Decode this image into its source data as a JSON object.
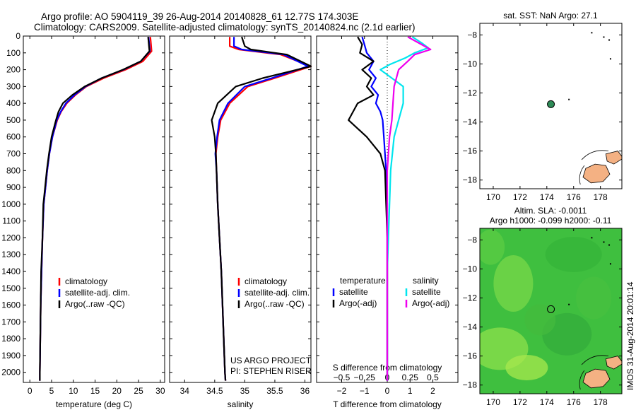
{
  "header": {
    "line1": "Argo profile: AO 5904119_39 26-Aug-2014 20140828_61 12.77S 174.303E",
    "line2": "Climatology: CARS2009. Satellite-adjusted climatology: synTS_20140824.nc (2.1d earlier)"
  },
  "credit": "IMOS 31-Aug-2014 20:01:14",
  "colors": {
    "clim": "#ff0000",
    "sat": "#0000ff",
    "argo": "#000000",
    "sat_sal": "#00e5ee",
    "argo_sal": "#ee00ee",
    "map_bg": "#3fbf3f",
    "land": "#f4b183",
    "float": "#2e8b57"
  },
  "chart_data": [
    {
      "id": "temperature",
      "type": "line",
      "xlabel": "temperature (deg C)",
      "ylabel": "",
      "xlim": [
        -1.5,
        31
      ],
      "ylim": [
        2060,
        0
      ],
      "xticks": [
        0,
        5,
        10,
        15,
        20,
        25,
        30
      ],
      "yticks": [
        0,
        100,
        200,
        300,
        400,
        500,
        600,
        700,
        800,
        900,
        1000,
        1100,
        1200,
        1300,
        1400,
        1500,
        1600,
        1700,
        1800,
        1900,
        2000
      ],
      "legend": [
        "climatology",
        "satellite-adj. clim.",
        "Argo(..raw -QC)"
      ],
      "series": [
        {
          "name": "climatology",
          "color": "clim",
          "x": [
            27.7,
            27.8,
            27.9,
            28.0,
            26.0,
            22.0,
            17.0,
            13.0,
            10.5,
            8.5,
            7.2,
            6.3,
            5.2,
            4.5,
            4.0,
            3.6,
            3.2,
            2.9,
            2.7,
            2.5,
            2.4,
            2.3,
            2.3
          ],
          "y": [
            5,
            30,
            60,
            90,
            150,
            200,
            250,
            300,
            350,
            400,
            450,
            500,
            600,
            700,
            800,
            900,
            1000,
            1200,
            1400,
            1600,
            1800,
            2000,
            2050
          ]
        },
        {
          "name": "satellite-adj. clim.",
          "color": "sat",
          "x": [
            27.3,
            27.4,
            27.5,
            27.6,
            25.5,
            21.5,
            16.5,
            12.8,
            10.3,
            8.3,
            7.1,
            6.2,
            5.2,
            4.5,
            4.0,
            3.6,
            3.2,
            2.9,
            2.7,
            2.5,
            2.4,
            2.3,
            2.3
          ],
          "y": [
            5,
            30,
            60,
            90,
            150,
            200,
            250,
            300,
            350,
            400,
            450,
            500,
            600,
            700,
            800,
            900,
            1000,
            1200,
            1400,
            1600,
            1800,
            2000,
            2050
          ]
        },
        {
          "name": "Argo(..raw -QC)",
          "color": "argo",
          "x": [
            27.2,
            27.3,
            27.4,
            27.5,
            25.5,
            21.4,
            16.5,
            12.6,
            9.8,
            7.6,
            6.6,
            6.0,
            5.0,
            4.4,
            3.9,
            3.5,
            3.1,
            2.9,
            2.6,
            2.5,
            2.4,
            2.3,
            2.3
          ],
          "y": [
            5,
            30,
            60,
            90,
            150,
            200,
            250,
            300,
            350,
            400,
            450,
            500,
            600,
            700,
            800,
            900,
            1000,
            1200,
            1400,
            1600,
            1800,
            2000,
            2050
          ]
        }
      ]
    },
    {
      "id": "salinity",
      "type": "line",
      "xlabel": "salinity",
      "ylabel": "",
      "xlim": [
        33.75,
        36.1
      ],
      "ylim": [
        2060,
        0
      ],
      "xticks": [
        34,
        34.5,
        35,
        35.5,
        36
      ],
      "legend": [
        "climatology",
        "satellite-adj. clim.",
        "Argo(..raw -QC)"
      ],
      "annotation": [
        "US ARGO PROJECT",
        "PI: STEPHEN RISER"
      ],
      "series": [
        {
          "name": "climatology",
          "color": "clim",
          "x": [
            34.75,
            34.75,
            34.9,
            35.6,
            36.1,
            35.5,
            35.05,
            34.75,
            34.6,
            34.55,
            34.52,
            34.53,
            34.55,
            34.58,
            34.61,
            34.63,
            34.65,
            34.67,
            34.68
          ],
          "y": [
            5,
            60,
            80,
            110,
            180,
            250,
            300,
            400,
            500,
            600,
            700,
            800,
            1000,
            1200,
            1400,
            1600,
            1800,
            2000,
            2050
          ]
        },
        {
          "name": "satellite-adj. clim.",
          "color": "sat",
          "x": [
            34.82,
            34.82,
            34.95,
            35.65,
            36.05,
            35.45,
            35.0,
            34.72,
            34.58,
            34.54,
            34.51,
            34.53,
            34.55,
            34.58,
            34.61,
            34.63,
            34.65,
            34.67,
            34.68
          ],
          "y": [
            5,
            60,
            80,
            110,
            180,
            250,
            300,
            400,
            500,
            600,
            700,
            800,
            1000,
            1200,
            1400,
            1600,
            1800,
            2000,
            2050
          ]
        },
        {
          "name": "Argo(..raw -QC)",
          "color": "argo",
          "x": [
            34.95,
            35.0,
            35.1,
            35.7,
            36.1,
            35.3,
            34.85,
            34.55,
            34.45,
            34.5,
            34.52,
            34.53,
            34.55,
            34.58,
            34.61,
            34.63,
            34.65,
            34.67,
            34.68
          ],
          "y": [
            5,
            60,
            80,
            110,
            180,
            250,
            300,
            400,
            500,
            600,
            700,
            800,
            1000,
            1200,
            1400,
            1600,
            1800,
            2000,
            2050
          ]
        }
      ]
    },
    {
      "id": "difference",
      "type": "line",
      "xlabel": "T difference from climatology",
      "xlabel2": "S difference from climatology",
      "xlim": [
        -3.1,
        3.1
      ],
      "ylim": [
        2060,
        0
      ],
      "xticks": [
        -2,
        -1,
        0,
        1,
        2
      ],
      "xticks2": [
        -0.5,
        -0.25,
        0,
        0.25,
        0.5
      ],
      "x2_factor": 4,
      "legend": {
        "temperature": "temperature",
        "salinity": "salinity",
        "sat_t": "satellite",
        "argo_t": "Argo(-adj)",
        "sat_s": "satellite",
        "argo_s": "Argo(-adj)"
      },
      "series": [
        {
          "name": "satellite T diff",
          "color": "sat",
          "x": [
            -1.1,
            -1.0,
            -0.9,
            -0.6,
            -0.8,
            -0.5,
            -0.7,
            -0.4,
            -0.5,
            -0.3,
            -0.2,
            -0.15,
            -0.1,
            -0.05,
            0,
            0,
            0,
            0
          ],
          "y": [
            5,
            50,
            100,
            150,
            200,
            250,
            300,
            350,
            400,
            450,
            500,
            600,
            700,
            800,
            1000,
            1400,
            1800,
            2050
          ]
        },
        {
          "name": "Argo T diff",
          "color": "argo",
          "x": [
            -1.3,
            -1.1,
            -1.2,
            -0.6,
            -1.1,
            -0.7,
            -0.9,
            -0.6,
            -1.3,
            -1.7,
            -0.9,
            -0.6,
            -0.3,
            -0.1,
            -0.05,
            0,
            0,
            0,
            0
          ],
          "y": [
            5,
            50,
            100,
            150,
            200,
            250,
            300,
            350,
            400,
            500,
            600,
            650,
            700,
            800,
            1000,
            1200,
            1400,
            1800,
            2050
          ]
        },
        {
          "name": "satellite S diff",
          "color": "sat_sal",
          "x": [
            1.1,
            1.5,
            1.8,
            1.2,
            0.8,
            0.1,
            -0.3,
            0.2,
            0.7,
            0.7,
            0.5,
            0.3,
            0.15,
            0.1,
            0,
            0,
            0
          ],
          "y": [
            5,
            40,
            70,
            100,
            130,
            170,
            200,
            250,
            300,
            400,
            500,
            600,
            800,
            1000,
            1400,
            1800,
            2050
          ]
        },
        {
          "name": "Argo S diff",
          "color": "argo_sal",
          "x": [
            0.9,
            1.5,
            1.9,
            1.2,
            0.9,
            0.5,
            0.3,
            0.25,
            0.2,
            0.1,
            0,
            0
          ],
          "y": [
            5,
            50,
            80,
            110,
            150,
            200,
            300,
            400,
            500,
            600,
            800,
            2050
          ]
        }
      ]
    },
    {
      "id": "sst_map",
      "type": "scatter",
      "title": "sat. SST: NaN Argo: 27.1",
      "xlim": [
        169,
        179.6
      ],
      "ylim": [
        -18.6,
        -7.2
      ],
      "xticks": [
        170,
        172,
        174,
        176,
        178
      ],
      "yticks": [
        -8,
        -10,
        -12,
        -14,
        -16,
        -18
      ],
      "float": {
        "x": 174.303,
        "y": -12.77
      }
    },
    {
      "id": "sla_map",
      "type": "heatmap",
      "title1": "Altim. SLA: -0.0011",
      "title2": "Argo h1000: -0.099 h2000: -0.11",
      "xlim": [
        169,
        179.6
      ],
      "ylim": [
        -18.6,
        -7.2
      ],
      "xticks": [
        170,
        172,
        174,
        176,
        178
      ],
      "yticks": [
        -8,
        -10,
        -12,
        -14,
        -16,
        -18
      ],
      "float": {
        "x": 174.303,
        "y": -12.77
      }
    }
  ]
}
